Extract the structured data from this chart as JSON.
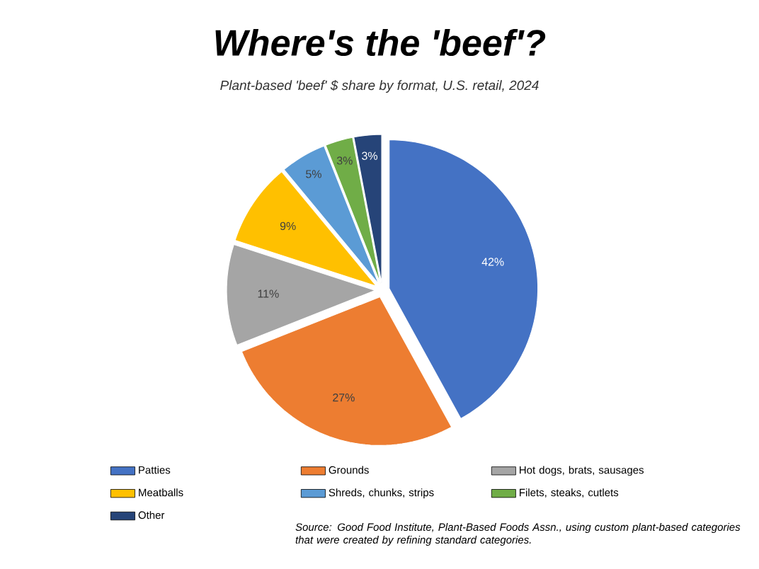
{
  "chart_data": {
    "type": "pie",
    "title": "Where's the 'beef'?",
    "subtitle": "Plant-based 'beef' $ share by format, U.S. retail, 2024",
    "categories": [
      "Patties",
      "Grounds",
      "Hot dogs, brats, sausages",
      "Meatballs",
      "Shreds, chunks, strips",
      "Filets, steaks, cutlets",
      "Other"
    ],
    "values": [
      42,
      27,
      11,
      9,
      5,
      3,
      3
    ],
    "value_labels": [
      "42%",
      "27%",
      "11%",
      "9%",
      "5%",
      "3%",
      "3%"
    ],
    "colors": [
      "#4472c4",
      "#ed7d31",
      "#a5a5a5",
      "#ffc000",
      "#5b9bd5",
      "#70ad47",
      "#264478"
    ],
    "legend": "bottom",
    "annotations": [
      "Source: Good Food Institute, Plant-Based Foods Assn., using custom plant-based categories that were created by refining standard categories."
    ]
  }
}
